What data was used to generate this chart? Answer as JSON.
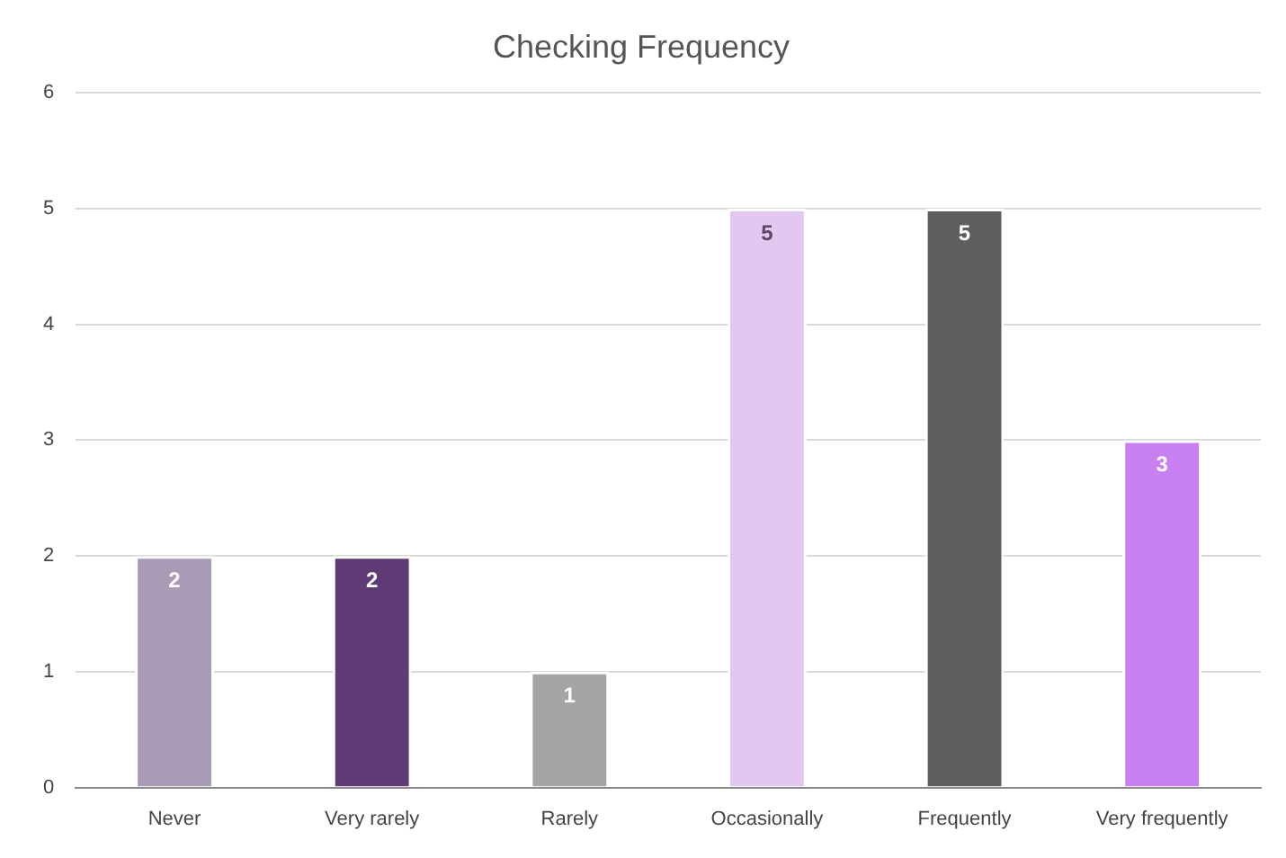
{
  "chart_data": {
    "type": "bar",
    "title": "Checking Frequency",
    "categories": [
      "Never",
      "Very rarely",
      "Rarely",
      "Occasionally",
      "Frequently",
      "Very frequently"
    ],
    "values": [
      2,
      2,
      1,
      5,
      5,
      3
    ],
    "colors": [
      "#a99bb5",
      "#5f3a75",
      "#a5a5a5",
      "#e2c8f1",
      "#5e5e5e",
      "#c87ff1"
    ],
    "ylim": [
      0,
      6
    ],
    "yticks": [
      0,
      1,
      2,
      3,
      4,
      5,
      6
    ],
    "grid": "y",
    "data_labels": true,
    "legend": false
  }
}
